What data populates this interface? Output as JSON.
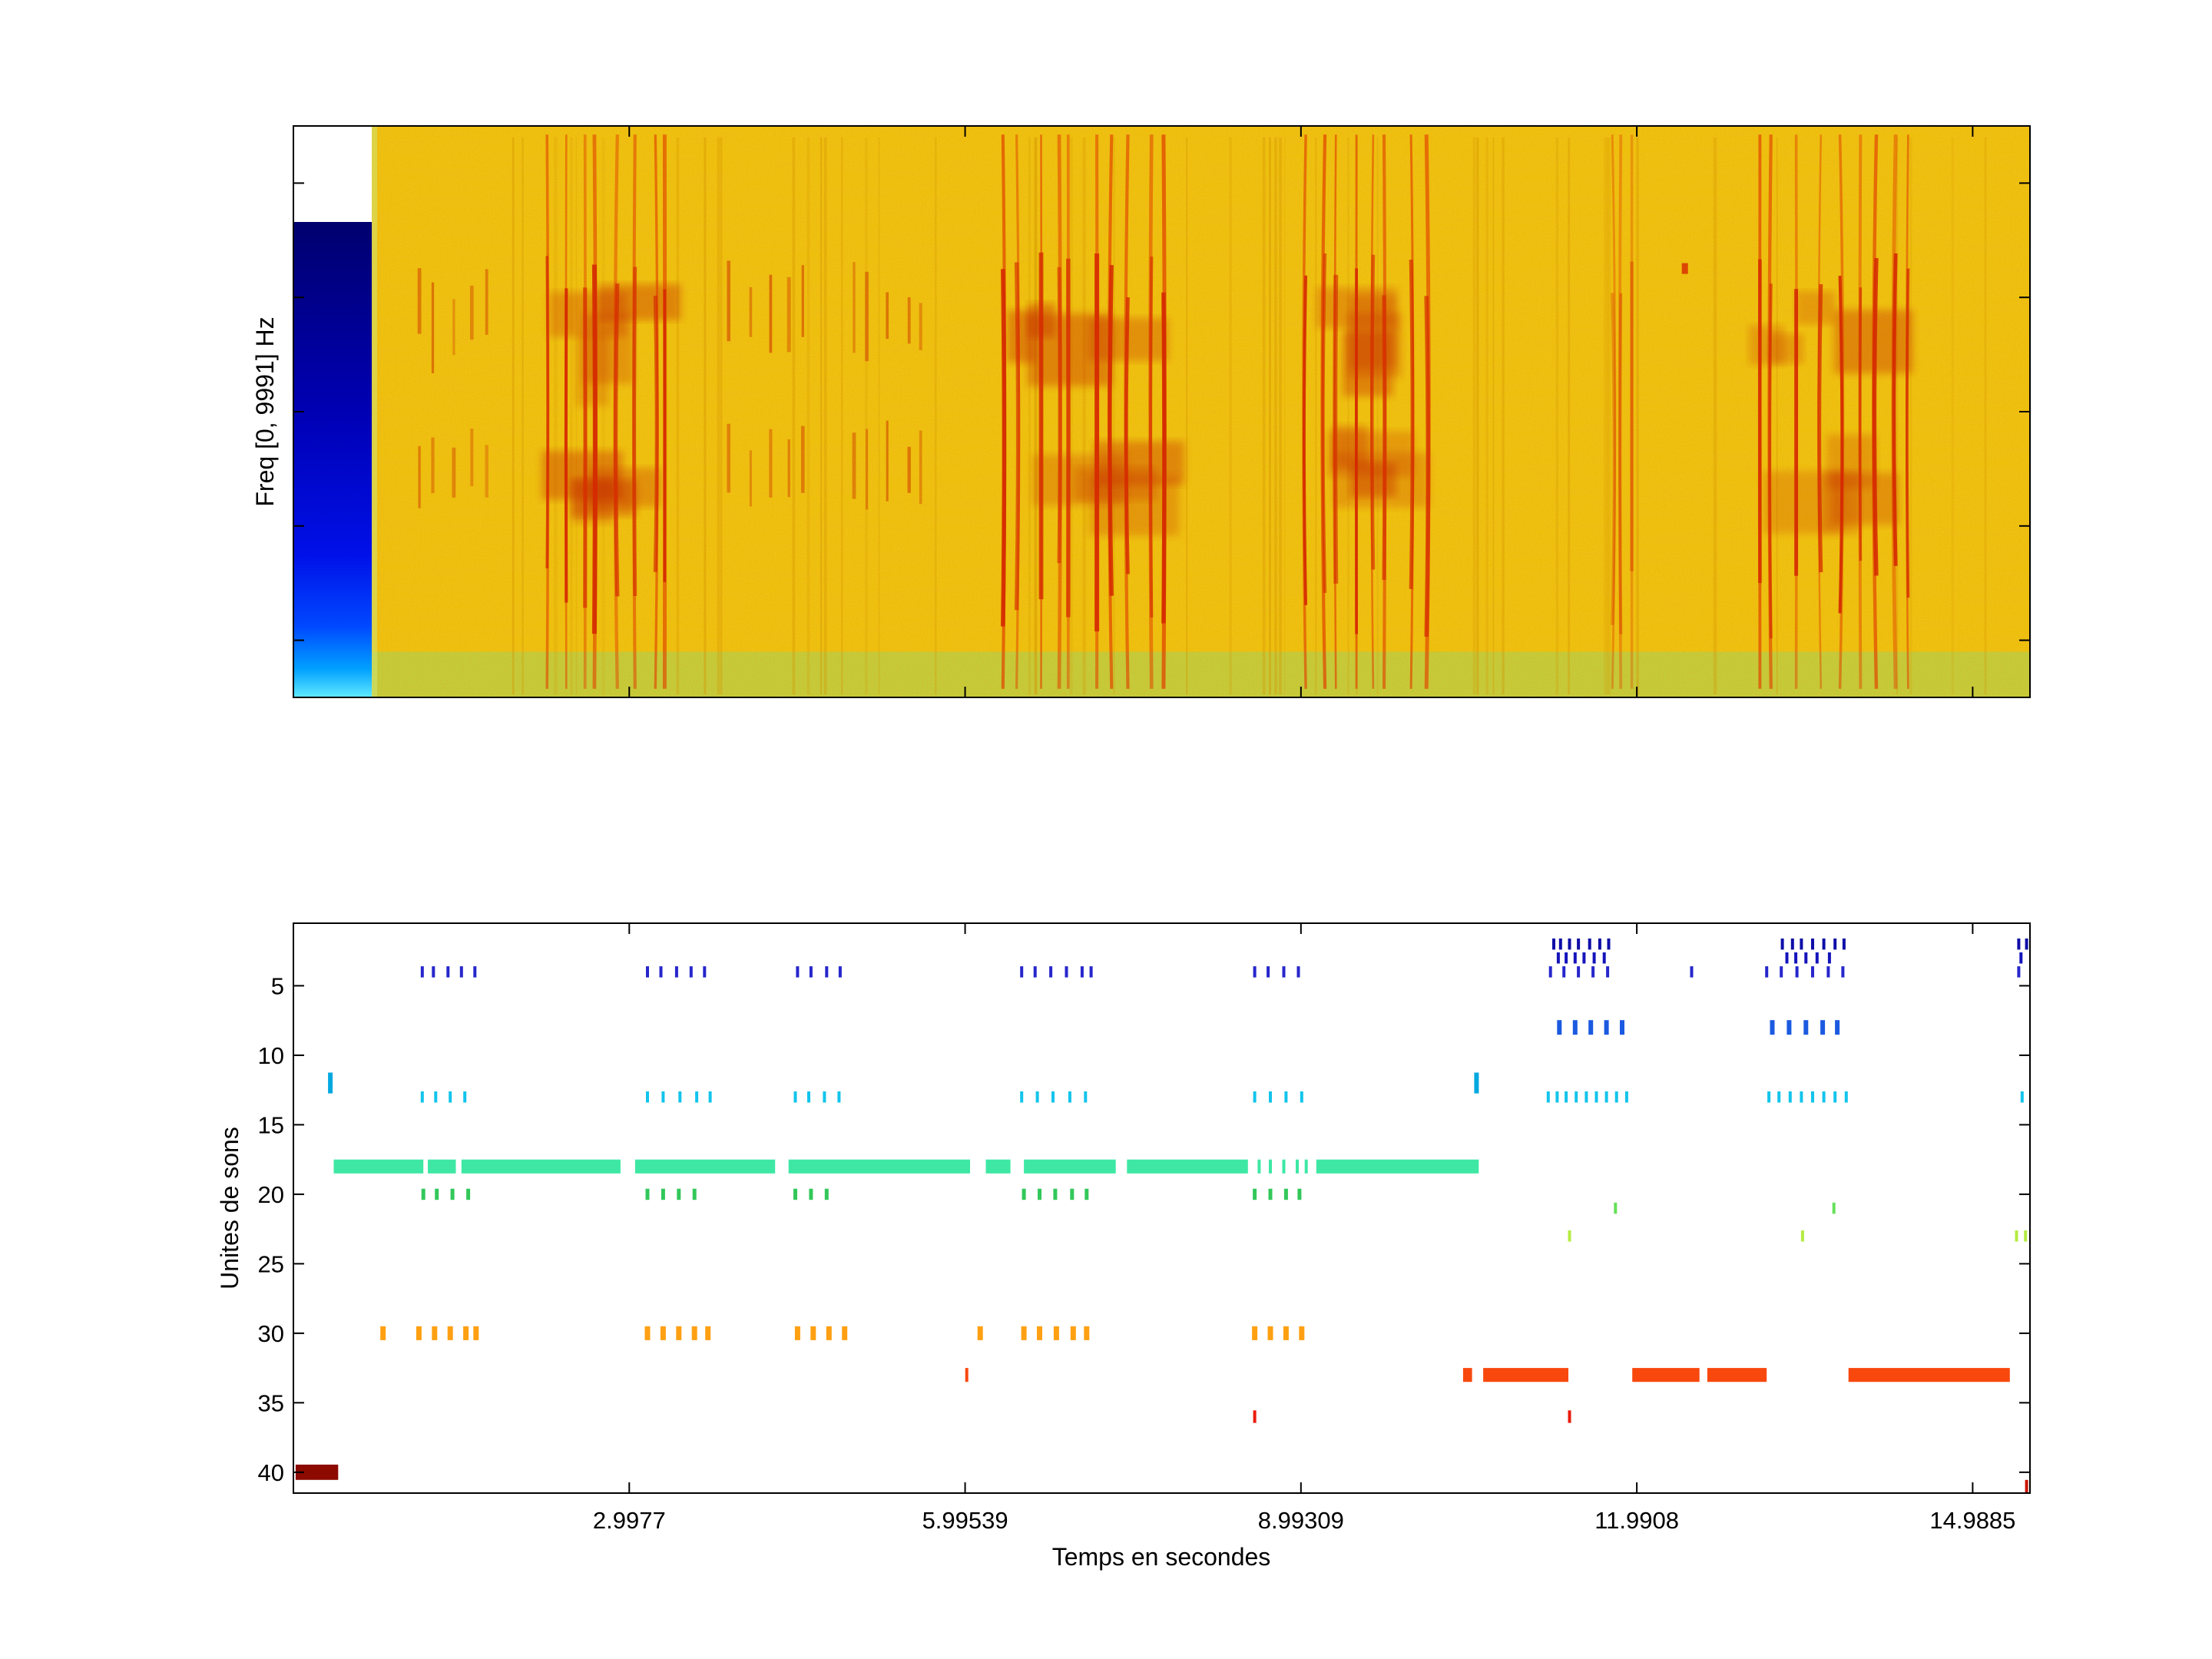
{
  "chart_data": [
    {
      "type": "heatmap",
      "name": "spectrogram",
      "ylabel": "Freq [0, 9991] Hz",
      "xlim": [
        0,
        15.5
      ],
      "freq_range_hz": [
        0,
        9991
      ],
      "colormap": "jet",
      "colors": {
        "base": "#f0cc08",
        "speckle": "#d47800",
        "hot": "#d83000",
        "bottom_band": "#aadc55",
        "low_energy_top": "#00006e",
        "low_energy_bottom": "#60eaff"
      },
      "features": {
        "leading_low_energy_band": {
          "t0": 0,
          "t1": 0.7,
          "freq_frac_top": 0.168
        },
        "bottom_band_top_frac": 0.92,
        "call_bursts": [
          {
            "t0": 1.05,
            "t1": 1.78,
            "strength": 0.35,
            "lines": 5
          },
          {
            "t0": 2.2,
            "t1": 3.42,
            "strength": 1.0,
            "lines": 8
          },
          {
            "t0": 3.85,
            "t1": 4.6,
            "strength": 0.4,
            "lines": 5
          },
          {
            "t0": 4.9,
            "t1": 5.68,
            "strength": 0.4,
            "lines": 5
          },
          {
            "t0": 6.25,
            "t1": 7.85,
            "strength": 1.0,
            "lines": 10
          },
          {
            "t0": 8.97,
            "t1": 10.15,
            "strength": 1.0,
            "lines": 8
          },
          {
            "t0": 11.75,
            "t1": 12.0,
            "strength": 0.55,
            "lines": 3
          },
          {
            "t0": 12.95,
            "t1": 14.55,
            "strength": 1.0,
            "lines": 9
          }
        ],
        "isolated_mark": {
          "t": 12.42,
          "freq_frac": 0.24
        }
      }
    },
    {
      "type": "scatter",
      "name": "sound-unit-raster",
      "xlabel": "Temps en secondes",
      "ylabel": "Unites de sons",
      "xlim": [
        0,
        15.5
      ],
      "units_range": [
        1,
        41
      ],
      "xticks": [
        2.9977,
        5.99539,
        8.99309,
        11.9908,
        14.9885
      ],
      "xtick_labels": [
        "2.9977",
        "5.99539",
        "8.99309",
        "11.9908",
        "14.9885"
      ],
      "yticks": [
        5,
        10,
        15,
        20,
        25,
        30,
        35,
        40
      ],
      "series": [
        {
          "unit": 2,
          "color": "#0e0ea8",
          "tick_h": 0.8,
          "ticks": [
            11.25,
            11.31,
            11.39,
            11.47,
            11.57,
            11.66,
            11.74,
            13.29,
            13.38,
            13.46,
            13.56,
            13.66,
            13.76,
            13.84,
            15.4,
            15.47
          ]
        },
        {
          "unit": 3,
          "color": "#1414bc",
          "tick_h": 0.8,
          "ticks": [
            11.29,
            11.36,
            11.44,
            11.52,
            11.61,
            11.7,
            13.33,
            13.41,
            13.5,
            13.6,
            13.71,
            15.42
          ]
        },
        {
          "unit": 4,
          "color": "#2626cc",
          "ticks": [
            1.15,
            1.25,
            1.38,
            1.5,
            1.62,
            3.16,
            3.28,
            3.42,
            3.55,
            3.67,
            4.5,
            4.62,
            4.76,
            4.88,
            6.5,
            6.62,
            6.76,
            6.9,
            7.04,
            7.12,
            8.58,
            8.7,
            8.84,
            8.97,
            11.22,
            11.34,
            11.47,
            11.6,
            11.73,
            12.48,
            13.15,
            13.28,
            13.42,
            13.56,
            13.7,
            13.83,
            15.4
          ]
        },
        {
          "unit": 8,
          "color": "#1b5ae0",
          "tick_h": 1.05,
          "tick_w": 6,
          "ticks": [
            11.3,
            11.44,
            11.58,
            11.72,
            11.86,
            13.2,
            13.35,
            13.5,
            13.65,
            13.78
          ]
        },
        {
          "unit": 12,
          "color": "#00a8e0",
          "tick_h": 1.5,
          "tick_w": 6,
          "ticks": [
            0.33,
            10.56
          ]
        },
        {
          "unit": 13,
          "color": "#12c4ec",
          "ticks": [
            1.15,
            1.27,
            1.4,
            1.53,
            3.16,
            3.3,
            3.45,
            3.6,
            3.72,
            4.48,
            4.6,
            4.74,
            4.87,
            6.5,
            6.64,
            6.78,
            6.93,
            7.07,
            8.58,
            8.72,
            8.86,
            9.0,
            11.2,
            11.28,
            11.36,
            11.45,
            11.54,
            11.63,
            11.72,
            11.81,
            11.9,
            13.17,
            13.26,
            13.36,
            13.46,
            13.56,
            13.66,
            13.76,
            13.86,
            15.43
          ]
        },
        {
          "unit": 18,
          "color": "#3ee8a4",
          "tick_h": 1.0,
          "segments": [
            [
              0.36,
              1.16
            ],
            [
              1.2,
              1.45
            ],
            [
              1.5,
              2.92
            ],
            [
              3.05,
              4.3
            ],
            [
              4.42,
              6.04
            ],
            [
              6.18,
              6.4
            ],
            [
              6.52,
              7.34
            ],
            [
              7.44,
              8.52
            ],
            [
              9.13,
              10.58
            ]
          ],
          "ticks": [
            8.62,
            8.72,
            8.84,
            8.96,
            9.04
          ]
        },
        {
          "unit": 20,
          "color": "#32c85a",
          "tick_w": 5,
          "ticks": [
            1.16,
            1.28,
            1.42,
            1.56,
            3.16,
            3.3,
            3.44,
            3.58,
            4.48,
            4.62,
            4.76,
            6.52,
            6.66,
            6.8,
            6.95,
            7.08,
            8.58,
            8.72,
            8.86,
            8.98
          ]
        },
        {
          "unit": 21,
          "color": "#66e05a",
          "ticks": [
            11.8,
            13.75
          ]
        },
        {
          "unit": 23,
          "color": "#b4ec42",
          "ticks": [
            11.39,
            13.47,
            15.38,
            15.46
          ]
        },
        {
          "unit": 30,
          "color": "#ffa012",
          "tick_h": 1.0,
          "tick_w": 7,
          "ticks": [
            0.8,
            1.12,
            1.26,
            1.4,
            1.54,
            1.63,
            3.16,
            3.3,
            3.44,
            3.58,
            3.7,
            4.5,
            4.64,
            4.78,
            4.92,
            6.13,
            6.52,
            6.66,
            6.81,
            6.96,
            7.08,
            8.58,
            8.72,
            8.86,
            9.0
          ]
        },
        {
          "unit": 33,
          "color": "#f8480e",
          "tick_h": 1.0,
          "segments": [
            [
              10.44,
              10.52
            ],
            [
              10.62,
              11.38
            ],
            [
              11.95,
              12.55
            ],
            [
              12.62,
              13.15
            ],
            [
              13.88,
              15.32
            ]
          ],
          "ticks": [
            6.01
          ]
        },
        {
          "unit": 36,
          "color": "#ea1c0c",
          "tick_h": 0.9,
          "ticks": [
            8.58,
            11.39
          ]
        },
        {
          "unit": 40,
          "color": "#8c0a00",
          "tick_h": 1.1,
          "segments": [
            [
              0.02,
              0.4
            ]
          ]
        },
        {
          "unit": 41,
          "color": "#c81400",
          "tick_h": 0.9,
          "ticks": [
            15.47
          ]
        }
      ]
    }
  ]
}
